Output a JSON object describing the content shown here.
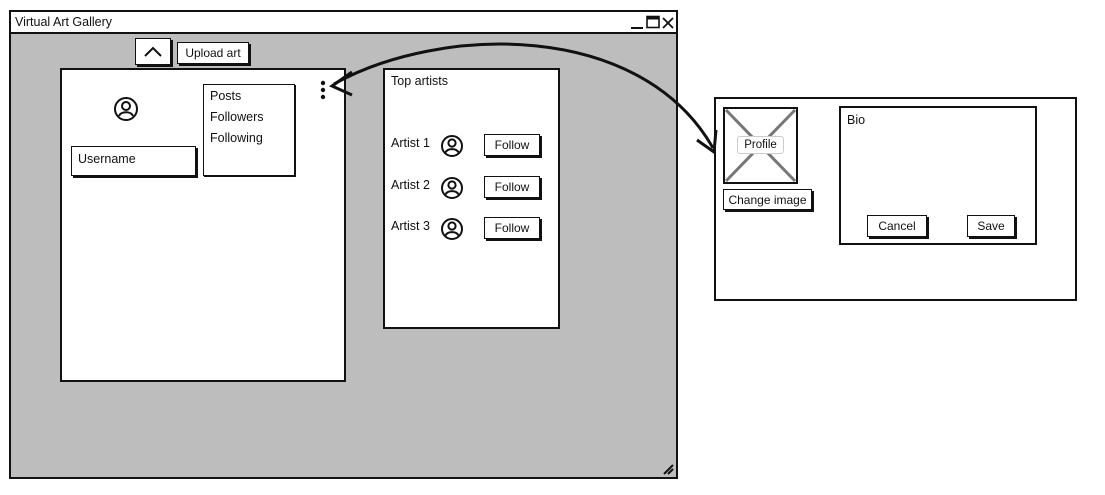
{
  "window": {
    "title": "Virtual Art Gallery",
    "controls": [
      "minimize",
      "maximize",
      "close"
    ]
  },
  "toolbar": {
    "collapse_icon": "chevron-up-icon",
    "upload_label": "Upload art"
  },
  "profile": {
    "avatar_icon": "user-circle-icon",
    "username_value": "Username",
    "menu_icon": "vertical-dots-icon",
    "stats": [
      "Posts",
      "Followers",
      "Following"
    ]
  },
  "top_artists": {
    "title": "Top artists",
    "items": [
      {
        "name": "Artist 1",
        "follow_label": "Follow"
      },
      {
        "name": "Artist 2",
        "follow_label": "Follow"
      },
      {
        "name": "Artist 3",
        "follow_label": "Follow"
      }
    ]
  },
  "edit_profile": {
    "image_label": "Profile",
    "change_image_label": "Change image",
    "bio_label": "Bio",
    "cancel_label": "Cancel",
    "save_label": "Save"
  },
  "colors": {
    "window_bg": "#bdbdbd",
    "panel_bg": "#ffffff",
    "ink": "#111111"
  }
}
